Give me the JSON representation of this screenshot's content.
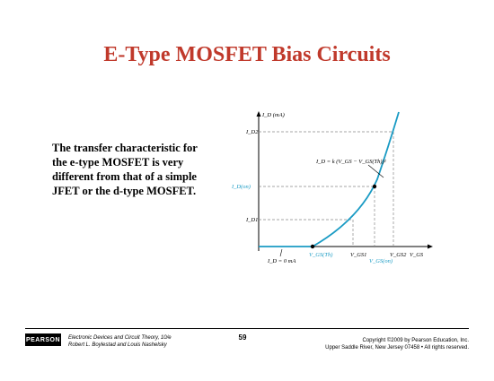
{
  "slide": {
    "title": "E-Type MOSFET Bias Circuits",
    "body_lines": [
      "The transfer characteristic for",
      "the e-type MOSFET is very",
      "different from that of a simple",
      "JFET or the d-type MOSFET."
    ]
  },
  "graph": {
    "y_axis_label": "I_D (mA)",
    "label_id2": "I_D2",
    "label_idon": "I_D(on)",
    "label_id1": "I_D1",
    "equation": "I_D = k (V_GS − V_GS(Th))²",
    "label_vgsth": "V_GS(Th)",
    "label_vgs1": "V_GS1",
    "label_vgson": "V_GS(on)",
    "label_vgs2": "V_GS2",
    "label_vgs_axis": "V_GS",
    "label_id0": "I_D = 0 mA",
    "curve_color": "#1a9bc4"
  },
  "footer": {
    "publisher_logo": "PEARSON",
    "book_line1": "Electronic Devices and Circuit Theory, 10/e",
    "book_line2": "Robert L. Boylestad and Louis Nashelsky",
    "page_number": "59",
    "copyright_line1": "Copyright ©2009 by Pearson Education, Inc.",
    "copyright_line2": "Upper Saddle River, New Jersey 07458 • All rights reserved."
  }
}
